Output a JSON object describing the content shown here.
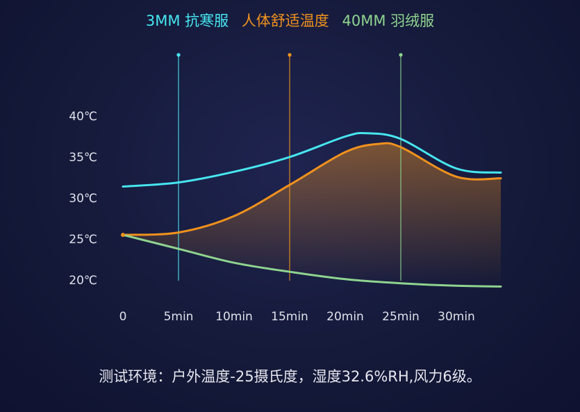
{
  "colors": {
    "series_cyan": "#47e6f0",
    "series_orange": "#f0921e",
    "series_green": "#8fd48f",
    "text": "#e0e0ea",
    "grid": "#3a3f66"
  },
  "legend": [
    {
      "label": "3MM 抗寒服",
      "color": "#47e6f0"
    },
    {
      "label": "人体舒适温度",
      "color": "#f0921e"
    },
    {
      "label": "40MM 羽绒服",
      "color": "#8fd48f"
    }
  ],
  "footnote": "测试环境：户外温度-25摄氏度，湿度32.6%RH,风力6级。",
  "chart_data": {
    "type": "line",
    "x_tick_labels": [
      "0",
      "5min",
      "10min",
      "15min",
      "20min",
      "25min",
      "30min"
    ],
    "x_ticks": [
      0,
      5,
      10,
      15,
      20,
      25,
      30
    ],
    "y_tick_labels": [
      "20℃",
      "25℃",
      "30℃",
      "35℃",
      "40℃"
    ],
    "y_ticks": [
      20,
      25,
      30,
      35,
      40
    ],
    "xlim": [
      0,
      35
    ],
    "grid": "vertical",
    "markers": [
      {
        "x": 5,
        "color": "#47e6f0"
      },
      {
        "x": 15,
        "color": "#f0921e"
      },
      {
        "x": 25,
        "color": "#8fd48f"
      }
    ],
    "series": [
      {
        "color": "#47e6f0",
        "x": [
          0,
          5,
          10,
          15,
          20,
          22,
          25,
          30,
          34
        ],
        "y": [
          31.4,
          31.9,
          33.2,
          35.0,
          37.5,
          37.9,
          37.2,
          33.6,
          33.1
        ]
      },
      {
        "color": "#f0921e",
        "x": [
          0,
          5,
          10,
          15,
          20,
          23,
          25,
          30,
          34
        ],
        "y": [
          25.5,
          25.8,
          27.8,
          31.6,
          35.6,
          36.6,
          36.2,
          32.6,
          32.4
        ]
      },
      {
        "color": "#8fd48f",
        "x": [
          0,
          5,
          10,
          15,
          20,
          25,
          30,
          34
        ],
        "y": [
          25.5,
          23.8,
          22.1,
          21.0,
          20.1,
          19.6,
          19.3,
          19.2
        ]
      }
    ]
  }
}
